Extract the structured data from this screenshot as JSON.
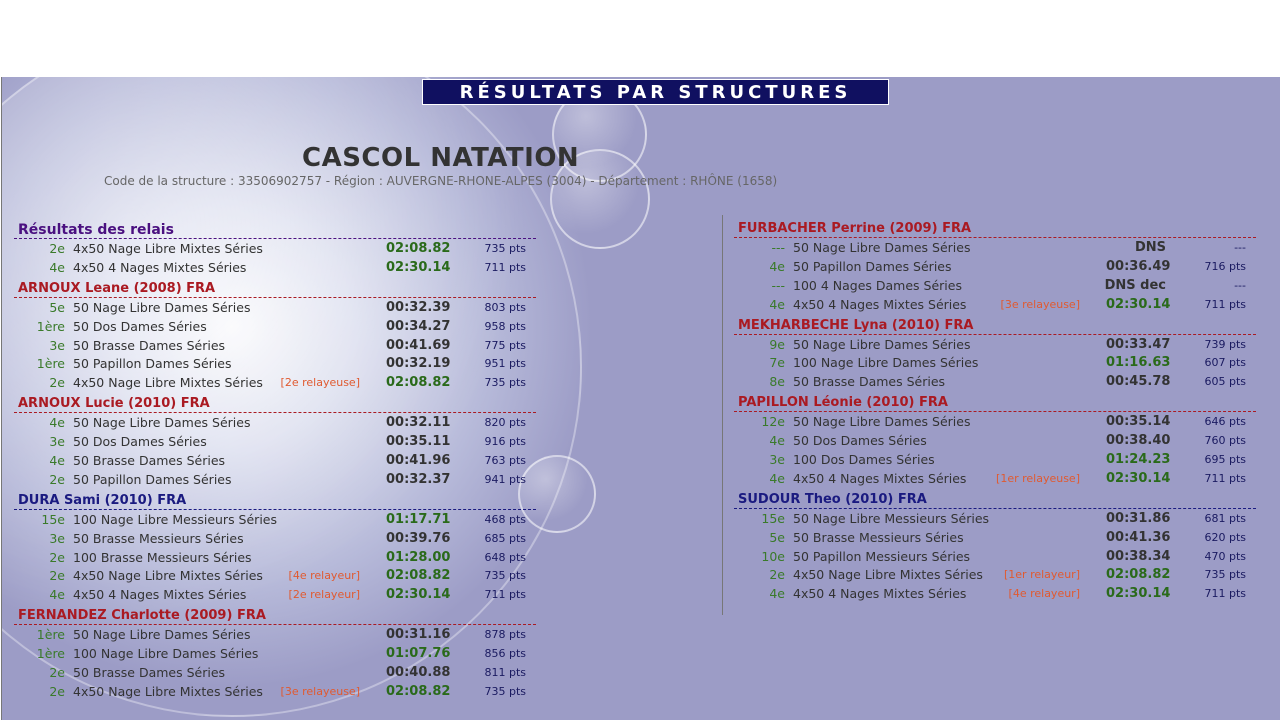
{
  "banner": "RÉSULTATS PAR STRUCTURES",
  "club": {
    "name": "CASCOL NATATION",
    "info": "Code de la structure : 33506902757 - Région : AUVERGNE-RHONE-ALPES (3004) - Département : RHÔNE (1658)"
  },
  "left": [
    {
      "title": "Résultats des relais",
      "kind": "r",
      "rows": [
        {
          "rank": "2e",
          "event": "4x50 Nage Libre Mixtes Séries",
          "tag": "",
          "time": "02:08.82",
          "pb": true,
          "pts": "735 pts"
        },
        {
          "rank": "4e",
          "event": "4x50 4 Nages Mixtes Séries",
          "tag": "",
          "time": "02:30.14",
          "pb": true,
          "pts": "711 pts"
        }
      ]
    },
    {
      "title": "ARNOUX Leane (2008) FRA",
      "kind": "f",
      "rows": [
        {
          "rank": "5e",
          "event": "50 Nage Libre Dames Séries",
          "tag": "",
          "time": "00:32.39",
          "pb": false,
          "pts": "803 pts"
        },
        {
          "rank": "1ère",
          "event": "50 Dos Dames Séries",
          "tag": "",
          "time": "00:34.27",
          "pb": false,
          "pts": "958 pts"
        },
        {
          "rank": "3e",
          "event": "50 Brasse Dames Séries",
          "tag": "",
          "time": "00:41.69",
          "pb": false,
          "pts": "775 pts"
        },
        {
          "rank": "1ère",
          "event": "50 Papillon Dames Séries",
          "tag": "",
          "time": "00:32.19",
          "pb": false,
          "pts": "951 pts"
        },
        {
          "rank": "2e",
          "event": "4x50 Nage Libre Mixtes Séries",
          "tag": "[2e relayeuse]",
          "time": "02:08.82",
          "pb": true,
          "pts": "735 pts"
        }
      ]
    },
    {
      "title": "ARNOUX Lucie (2010) FRA",
      "kind": "f",
      "rows": [
        {
          "rank": "4e",
          "event": "50 Nage Libre Dames Séries",
          "tag": "",
          "time": "00:32.11",
          "pb": false,
          "pts": "820 pts"
        },
        {
          "rank": "3e",
          "event": "50 Dos Dames Séries",
          "tag": "",
          "time": "00:35.11",
          "pb": false,
          "pts": "916 pts"
        },
        {
          "rank": "4e",
          "event": "50 Brasse Dames Séries",
          "tag": "",
          "time": "00:41.96",
          "pb": false,
          "pts": "763 pts"
        },
        {
          "rank": "2e",
          "event": "50 Papillon Dames Séries",
          "tag": "",
          "time": "00:32.37",
          "pb": false,
          "pts": "941 pts"
        }
      ]
    },
    {
      "title": "DURA Sami (2010) FRA",
      "kind": "m",
      "rows": [
        {
          "rank": "15e",
          "event": "100 Nage Libre Messieurs Séries",
          "tag": "",
          "time": "01:17.71",
          "pb": true,
          "pts": "468 pts"
        },
        {
          "rank": "3e",
          "event": "50 Brasse Messieurs Séries",
          "tag": "",
          "time": "00:39.76",
          "pb": false,
          "pts": "685 pts"
        },
        {
          "rank": "2e",
          "event": "100 Brasse Messieurs Séries",
          "tag": "",
          "time": "01:28.00",
          "pb": true,
          "pts": "648 pts"
        },
        {
          "rank": "2e",
          "event": "4x50 Nage Libre Mixtes Séries",
          "tag": "[4e relayeur]",
          "time": "02:08.82",
          "pb": true,
          "pts": "735 pts"
        },
        {
          "rank": "4e",
          "event": "4x50 4 Nages Mixtes Séries",
          "tag": "[2e relayeur]",
          "time": "02:30.14",
          "pb": true,
          "pts": "711 pts"
        }
      ]
    },
    {
      "title": "FERNANDEZ Charlotte (2009) FRA",
      "kind": "f",
      "rows": [
        {
          "rank": "1ère",
          "event": "50 Nage Libre Dames Séries",
          "tag": "",
          "time": "00:31.16",
          "pb": false,
          "pts": "878 pts"
        },
        {
          "rank": "1ère",
          "event": "100 Nage Libre Dames Séries",
          "tag": "",
          "time": "01:07.76",
          "pb": true,
          "pts": "856 pts"
        },
        {
          "rank": "2e",
          "event": "50 Brasse Dames Séries",
          "tag": "",
          "time": "00:40.88",
          "pb": false,
          "pts": "811 pts"
        },
        {
          "rank": "2e",
          "event": "4x50 Nage Libre Mixtes Séries",
          "tag": "[3e relayeuse]",
          "time": "02:08.82",
          "pb": true,
          "pts": "735 pts"
        }
      ]
    }
  ],
  "right": [
    {
      "title": "FURBACHER Perrine (2009) FRA",
      "kind": "f",
      "rows": [
        {
          "rank": "---",
          "event": "50 Nage Libre Dames Séries",
          "tag": "",
          "time": "DNS",
          "pb": false,
          "pts": "---",
          "center": true
        },
        {
          "rank": "4e",
          "event": "50 Papillon Dames Séries",
          "tag": "",
          "time": "00:36.49",
          "pb": false,
          "pts": "716 pts"
        },
        {
          "rank": "---",
          "event": "100 4 Nages Dames Séries",
          "tag": "",
          "time": "DNS dec",
          "pb": false,
          "pts": "---",
          "center": true
        },
        {
          "rank": "4e",
          "event": "4x50 4 Nages Mixtes Séries",
          "tag": "[3e relayeuse]",
          "time": "02:30.14",
          "pb": true,
          "pts": "711 pts"
        }
      ]
    },
    {
      "title": "MEKHARBECHE Lyna (2010) FRA",
      "kind": "f",
      "rows": [
        {
          "rank": "9e",
          "event": "50 Nage Libre Dames Séries",
          "tag": "",
          "time": "00:33.47",
          "pb": false,
          "pts": "739 pts"
        },
        {
          "rank": "7e",
          "event": "100 Nage Libre Dames Séries",
          "tag": "",
          "time": "01:16.63",
          "pb": true,
          "pts": "607 pts"
        },
        {
          "rank": "8e",
          "event": "50 Brasse Dames Séries",
          "tag": "",
          "time": "00:45.78",
          "pb": false,
          "pts": "605 pts"
        }
      ]
    },
    {
      "title": "PAPILLON Léonie (2010) FRA",
      "kind": "f",
      "rows": [
        {
          "rank": "12e",
          "event": "50 Nage Libre Dames Séries",
          "tag": "",
          "time": "00:35.14",
          "pb": false,
          "pts": "646 pts"
        },
        {
          "rank": "4e",
          "event": "50 Dos Dames Séries",
          "tag": "",
          "time": "00:38.40",
          "pb": false,
          "pts": "760 pts"
        },
        {
          "rank": "3e",
          "event": "100 Dos Dames Séries",
          "tag": "",
          "time": "01:24.23",
          "pb": true,
          "pts": "695 pts"
        },
        {
          "rank": "4e",
          "event": "4x50 4 Nages Mixtes Séries",
          "tag": "[1er relayeuse]",
          "time": "02:30.14",
          "pb": true,
          "pts": "711 pts"
        }
      ]
    },
    {
      "title": "SUDOUR Theo (2010) FRA",
      "kind": "m",
      "rows": [
        {
          "rank": "15e",
          "event": "50 Nage Libre Messieurs Séries",
          "tag": "",
          "time": "00:31.86",
          "pb": false,
          "pts": "681 pts"
        },
        {
          "rank": "5e",
          "event": "50 Brasse Messieurs Séries",
          "tag": "",
          "time": "00:41.36",
          "pb": false,
          "pts": "620 pts"
        },
        {
          "rank": "10e",
          "event": "50 Papillon Messieurs Séries",
          "tag": "",
          "time": "00:38.34",
          "pb": false,
          "pts": "470 pts"
        },
        {
          "rank": "2e",
          "event": "4x50 Nage Libre Mixtes Séries",
          "tag": "[1er relayeur]",
          "time": "02:08.82",
          "pb": true,
          "pts": "735 pts"
        },
        {
          "rank": "4e",
          "event": "4x50 4 Nages Mixtes Séries",
          "tag": "[4e relayeur]",
          "time": "02:30.14",
          "pb": true,
          "pts": "711 pts"
        }
      ]
    }
  ]
}
